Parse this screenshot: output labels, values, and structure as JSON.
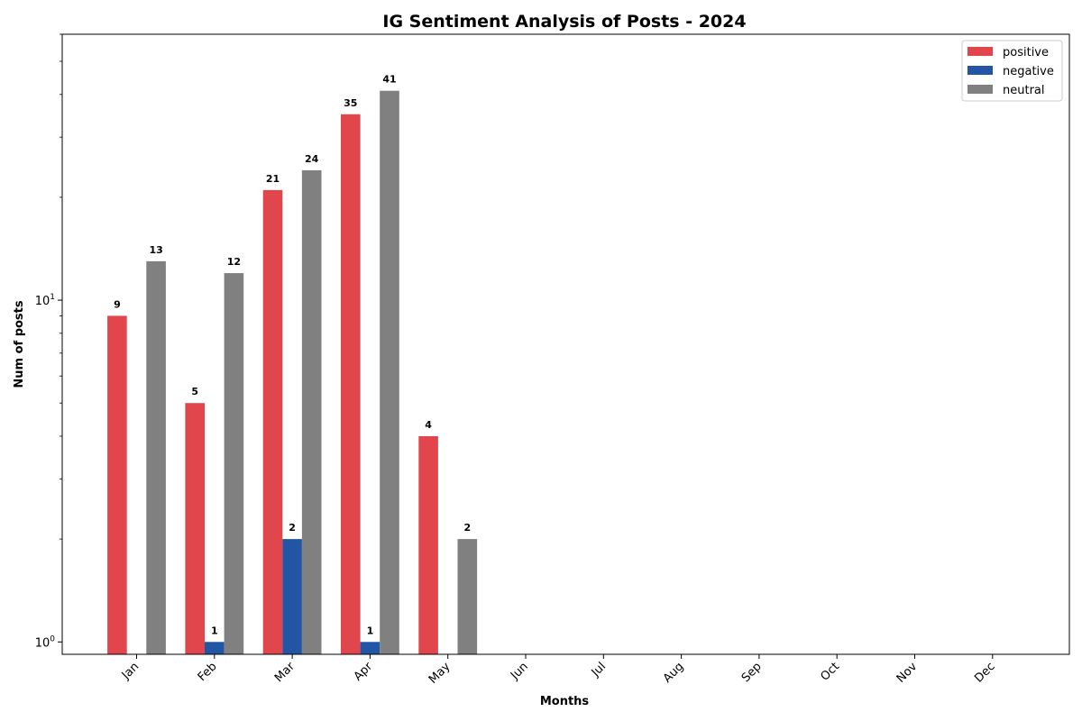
{
  "chart_data": {
    "type": "bar",
    "title": "IG Sentiment Analysis of Posts - 2024",
    "xlabel": "Months",
    "ylabel": "Num of posts",
    "y_scale": "log",
    "ylim": [
      0.92,
      60
    ],
    "y_ticks": [
      {
        "value": 1,
        "base": "10",
        "exp": "0"
      },
      {
        "value": 10,
        "base": "10",
        "exp": "1"
      }
    ],
    "categories": [
      "Jan",
      "Feb",
      "Mar",
      "Apr",
      "May",
      "Jun",
      "Jul",
      "Aug",
      "Sep",
      "Oct",
      "Nov",
      "Dec"
    ],
    "series": [
      {
        "name": "positive",
        "color": "#e0464b",
        "values": [
          9,
          5,
          21,
          35,
          4,
          0,
          0,
          0,
          0,
          0,
          0,
          0
        ]
      },
      {
        "name": "negative",
        "color": "#2255a4",
        "values": [
          0,
          1,
          2,
          1,
          0,
          0,
          0,
          0,
          0,
          0,
          0,
          0
        ]
      },
      {
        "name": "neutral",
        "color": "#808080",
        "values": [
          13,
          12,
          24,
          41,
          2,
          0,
          0,
          0,
          0,
          0,
          0,
          0
        ]
      }
    ],
    "legend_position": "top-right",
    "grid": false
  }
}
